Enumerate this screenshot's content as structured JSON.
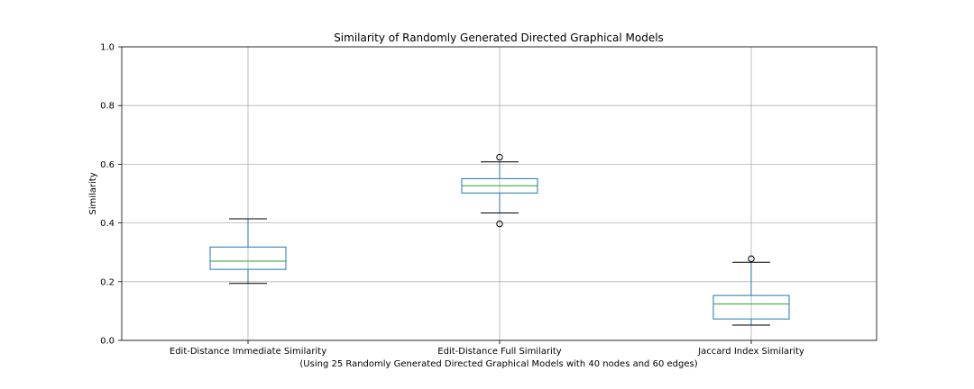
{
  "chart_data": {
    "type": "box",
    "title": "Similarity of Randomly Generated Directed Graphical Models",
    "xlabel": "(Using 25 Randomly Generated Directed Graphical Models with 40 nodes and 60 edges)",
    "ylabel": "Similarity",
    "ylim": [
      0,
      1
    ],
    "yticks": [
      "0.0",
      "0.2",
      "0.4",
      "0.6",
      "0.8",
      "1.0"
    ],
    "grid": true,
    "categories": [
      "Edit-Distance Immediate Similarity",
      "Edit-Distance Full Similarity",
      "Jaccard Index Similarity"
    ],
    "boxes": [
      {
        "name": "Edit-Distance Immediate Similarity",
        "whisker_low": 0.194,
        "q1": 0.242,
        "median": 0.27,
        "q3": 0.318,
        "whisker_high": 0.414,
        "outliers": []
      },
      {
        "name": "Edit-Distance Full Similarity",
        "whisker_low": 0.434,
        "q1": 0.502,
        "median": 0.527,
        "q3": 0.551,
        "whisker_high": 0.608,
        "outliers": [
          0.397,
          0.624
        ]
      },
      {
        "name": "Jaccard Index Similarity",
        "whisker_low": 0.052,
        "q1": 0.073,
        "median": 0.124,
        "q3": 0.153,
        "whisker_high": 0.266,
        "outliers": [
          0.278
        ]
      }
    ],
    "colors": {
      "box": "#1f77b4",
      "median": "#2ca02c",
      "whisker_cap": "#000000",
      "grid": "#b0b0b0"
    }
  }
}
